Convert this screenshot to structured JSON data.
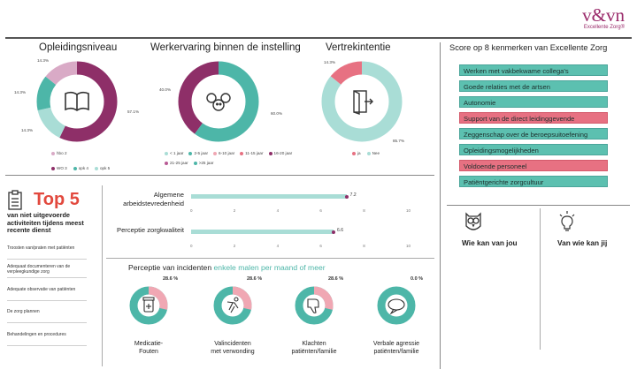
{
  "brand": {
    "name": "v&vn",
    "tagline": "Excellente Zorg®"
  },
  "opleidingsniveau": {
    "title": "Opleidingsniveau",
    "labels": [
      "14.3%",
      "14.3%",
      "14.3%",
      "57.1%"
    ],
    "legend": [
      {
        "label": "hbo 2",
        "color": "#d9aac6"
      },
      {
        "label": "WO 3",
        "color": "#8e2f68"
      },
      {
        "label": "opk 4",
        "color": "#4db6a8"
      },
      {
        "label": "opk 5",
        "color": "#a9ddd6"
      }
    ]
  },
  "werkervaring": {
    "title": "Werkervaring binnen de instelling",
    "labels": [
      "40.0%",
      "60.0%"
    ],
    "legend": [
      {
        "label": "< 1 jaar",
        "color": "#a9ddd6"
      },
      {
        "label": "2-5 jaar",
        "color": "#4db6a8"
      },
      {
        "label": "6-10 jaar",
        "color": "#f0a7b3"
      },
      {
        "label": "11-15 jaar",
        "color": "#e77182"
      },
      {
        "label": "16-20 jaar",
        "color": "#8e2f68"
      },
      {
        "label": "21-25 jaar",
        "color": "#b85a94"
      },
      {
        "label": ">25 jaar",
        "color": "#4db6a8"
      }
    ]
  },
  "vertrekintentie": {
    "title": "Vertrekintentie",
    "labels": [
      "14.3%",
      "85.7%"
    ],
    "legend": [
      {
        "label": "ja",
        "color": "#e77182"
      },
      {
        "label": "Nee",
        "color": "#a9ddd6"
      }
    ]
  },
  "kenmerken": {
    "title": "Score op 8 kenmerken van Excellente Zorg",
    "items": [
      {
        "label": "Werken met vakbekwame collega's",
        "color": "#5cc0b0"
      },
      {
        "label": "Goede relaties met de artsen",
        "color": "#5cc0b0"
      },
      {
        "label": "Autonomie",
        "color": "#5cc0b0"
      },
      {
        "label": "Support van de direct leidinggevende",
        "color": "#e77182"
      },
      {
        "label": "Zeggenschap over de beroepsuitoefening",
        "color": "#5cc0b0"
      },
      {
        "label": "Opleidingsmogelijkheden",
        "color": "#5cc0b0"
      },
      {
        "label": "Voldoende personeel",
        "color": "#e77182"
      },
      {
        "label": "Patiëntgerichte zorgcultuur",
        "color": "#5cc0b0"
      }
    ]
  },
  "top5": {
    "title": "Top 5",
    "subtitle": "van niet uitgevoerde activiteiten tijdens meest recente dienst",
    "items": [
      "Troosten van/praten met patiënten",
      "Adequaat documenteren van de verpleegkundige zorg",
      "Adequate observatie van patiënten",
      "De zorg plannen",
      "Behandelingen en procedures"
    ]
  },
  "tevredenheid": {
    "rows": [
      {
        "label": "Algemene arbeidstevredenheid",
        "value": 7.2,
        "value_label": "7.2"
      },
      {
        "label": "Perceptie zorgkwaliteit",
        "value": 6.6,
        "value_label": "6.6"
      }
    ],
    "ticks": [
      "0",
      "2",
      "4",
      "6",
      "8",
      "10"
    ],
    "max": 10
  },
  "incidenten": {
    "title": "Perceptie van incidenten",
    "title_suffix": "enkele malen per maand of meer",
    "items": [
      {
        "pct": "28.6 %",
        "value": 28.6,
        "caption": "Medicatie-\nFouten",
        "icon": "pill-bottle-icon"
      },
      {
        "pct": "28.6 %",
        "value": 28.6,
        "caption": "Valincidenten\nmet verwonding",
        "icon": "falling-person-icon"
      },
      {
        "pct": "28.6 %",
        "value": 28.6,
        "caption": "Klachten\npatiënten/familie",
        "icon": "thumbs-down-icon"
      },
      {
        "pct": "0.0 %",
        "value": 0.0,
        "caption": "Verbale agressie\npatiënten/familie",
        "icon": "speech-bubble-icon"
      }
    ]
  },
  "learn": {
    "from_you": "Wie kan van jou",
    "from_whom": "Van wie kan jij"
  }
}
